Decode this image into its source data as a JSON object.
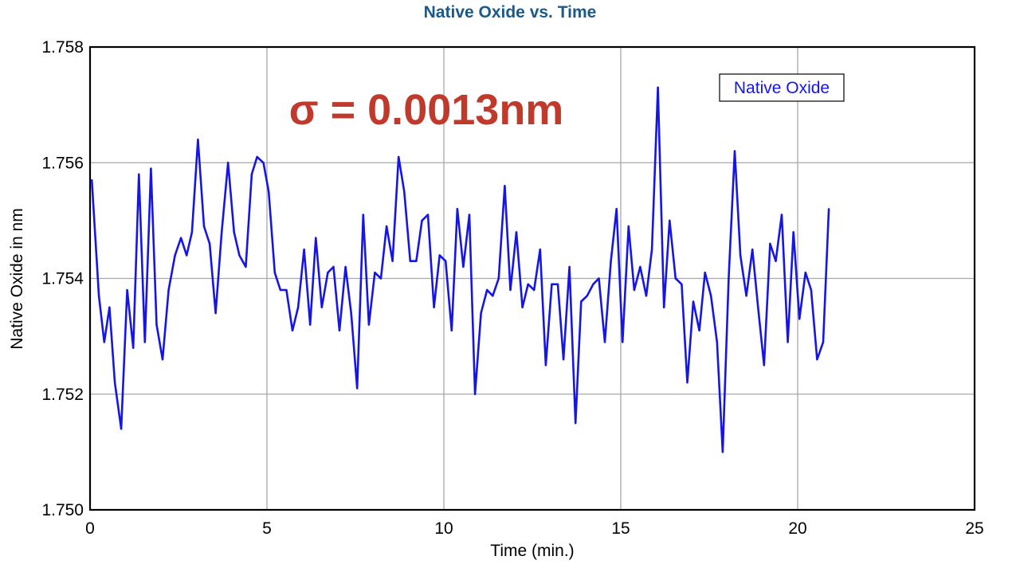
{
  "chart_data": {
    "type": "line",
    "title": "Native Oxide vs. Time",
    "xlabel": "Time (min.)",
    "ylabel": "Native Oxide in nm",
    "xlim": [
      0,
      25
    ],
    "ylim": [
      1.75,
      1.758
    ],
    "x_ticks": [
      "0",
      "5",
      "10",
      "15",
      "20",
      "25"
    ],
    "y_ticks": [
      "1.750",
      "1.752",
      "1.754",
      "1.756",
      "1.758"
    ],
    "grid": true,
    "legend_position": "top-right",
    "annotation": "σ = 0.0013nm",
    "series": [
      {
        "name": "Native Oxide",
        "color": "#1515e8",
        "x": [
          0.05,
          0.25,
          0.4,
          0.55,
          0.7,
          0.88,
          1.05,
          1.22,
          1.38,
          1.55,
          1.72,
          1.88,
          2.05,
          2.22,
          2.4,
          2.57,
          2.73,
          2.88,
          3.05,
          3.22,
          3.38,
          3.55,
          3.72,
          3.9,
          4.07,
          4.22,
          4.4,
          4.57,
          4.72,
          4.9,
          5.05,
          5.22,
          5.38,
          5.55,
          5.72,
          5.88,
          6.05,
          6.22,
          6.38,
          6.55,
          6.72,
          6.88,
          7.05,
          7.22,
          7.38,
          7.55,
          7.72,
          7.88,
          8.05,
          8.22,
          8.38,
          8.55,
          8.72,
          8.88,
          9.05,
          9.22,
          9.38,
          9.55,
          9.72,
          9.88,
          10.05,
          10.22,
          10.38,
          10.55,
          10.72,
          10.88,
          11.05,
          11.22,
          11.38,
          11.55,
          11.72,
          11.88,
          12.05,
          12.22,
          12.38,
          12.55,
          12.72,
          12.88,
          13.05,
          13.22,
          13.38,
          13.55,
          13.72,
          13.88,
          14.05,
          14.22,
          14.38,
          14.55,
          14.72,
          14.88,
          15.05,
          15.22,
          15.38,
          15.55,
          15.72,
          15.88,
          16.05,
          16.22,
          16.38,
          16.55,
          16.72,
          16.88,
          17.05,
          17.22,
          17.38,
          17.55,
          17.72,
          17.88,
          18.05,
          18.22,
          18.38,
          18.55,
          18.72,
          18.88,
          19.05,
          19.22,
          19.38,
          19.55,
          19.72,
          19.88,
          20.05,
          20.22,
          20.38,
          20.55,
          20.72,
          20.88
        ],
        "values": [
          1.7557,
          1.7537,
          1.7529,
          1.7535,
          1.7522,
          1.7514,
          1.7538,
          1.7528,
          1.7558,
          1.7529,
          1.7559,
          1.7532,
          1.7526,
          1.7538,
          1.7544,
          1.7547,
          1.7544,
          1.7548,
          1.7564,
          1.7549,
          1.7546,
          1.7534,
          1.7548,
          1.756,
          1.7548,
          1.7544,
          1.7542,
          1.7558,
          1.7561,
          1.756,
          1.7555,
          1.7541,
          1.7538,
          1.7538,
          1.7531,
          1.7535,
          1.7545,
          1.7532,
          1.7547,
          1.7535,
          1.7541,
          1.7542,
          1.7531,
          1.7542,
          1.7534,
          1.7521,
          1.7551,
          1.7532,
          1.7541,
          1.754,
          1.7549,
          1.7543,
          1.7561,
          1.7555,
          1.7543,
          1.7543,
          1.755,
          1.7551,
          1.7535,
          1.7544,
          1.7543,
          1.7531,
          1.7552,
          1.7542,
          1.7551,
          1.752,
          1.7534,
          1.7538,
          1.7537,
          1.754,
          1.7556,
          1.7538,
          1.7548,
          1.7535,
          1.7539,
          1.7538,
          1.7545,
          1.7525,
          1.7539,
          1.7539,
          1.7526,
          1.7542,
          1.7515,
          1.7536,
          1.7537,
          1.7539,
          1.754,
          1.7529,
          1.7543,
          1.7552,
          1.7529,
          1.7549,
          1.7538,
          1.7542,
          1.7537,
          1.7545,
          1.7573,
          1.7535,
          1.755,
          1.754,
          1.7539,
          1.7522,
          1.7536,
          1.7531,
          1.7541,
          1.7537,
          1.7529,
          1.751,
          1.754,
          1.7562,
          1.7544,
          1.7537,
          1.7545,
          1.7535,
          1.7525,
          1.7546,
          1.7543,
          1.7551,
          1.7529,
          1.7548,
          1.7533,
          1.7541,
          1.7538,
          1.7526,
          1.7529,
          1.7552
        ]
      }
    ]
  },
  "colors": {
    "title": "#1a5a8a",
    "annotation": "#c0392b",
    "line": "#1515e8",
    "grid": "#a8a8a8",
    "frame": "#000000"
  }
}
